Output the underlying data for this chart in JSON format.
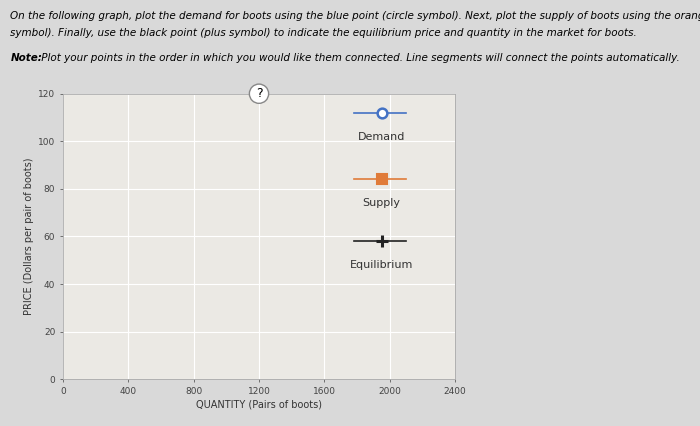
{
  "line1": "On the following graph, plot the demand for boots using the blue point (circle symbol). Next, plot the supply of boots using the orange point (square",
  "line2": "symbol). Finally, use the black point (plus symbol) to indicate the equilibrium price and quantity in the market for boots.",
  "note_bold": "Note:",
  "note_rest": " Plot your points in the order in which you would like them connected. Line segments will connect the points automatically.",
  "xlabel": "QUANTITY (Pairs of boots)",
  "ylabel": "PRICE (Dollars per pair of boots)",
  "xlim": [
    0,
    2400
  ],
  "ylim": [
    0,
    120
  ],
  "xticks": [
    0,
    400,
    800,
    1200,
    1600,
    2000,
    2400
  ],
  "yticks": [
    0,
    20,
    40,
    60,
    80,
    100,
    120
  ],
  "demand_color": "#4472c4",
  "supply_color": "#e07b39",
  "equilibrium_color": "#222222",
  "background_color": "#d9d9d9",
  "plot_bg_color": "#ebe9e4",
  "grid_color": "#ffffff",
  "legend_labels": [
    "Demand",
    "Supply",
    "Equilibrium"
  ],
  "title_fontsize": 7.5,
  "note_fontsize": 7.5,
  "axis_label_fontsize": 7,
  "tick_fontsize": 6.5,
  "legend_fontsize": 8
}
